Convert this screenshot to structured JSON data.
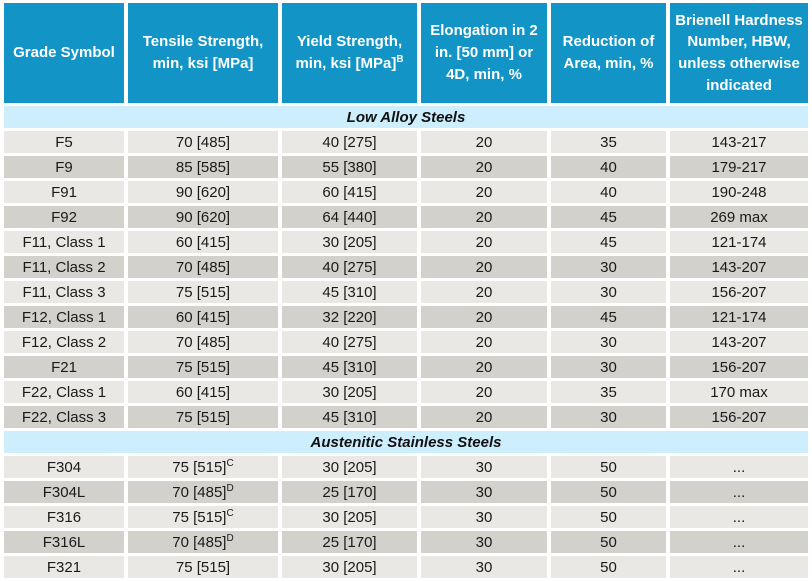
{
  "colors": {
    "header_bg": "#1295c6",
    "header_text": "#ffffff",
    "section_bg": "#cdeefc",
    "section_text": "#111111",
    "row_light": "#e9e8e4",
    "row_dark": "#d3d1cc",
    "cell_text": "#1a1a1a",
    "gap": "#ffffff"
  },
  "chart_data": {
    "type": "table",
    "columns": [
      {
        "label": "Grade Symbol",
        "sup": ""
      },
      {
        "label": "Tensile Strength, min, ksi [MPa]",
        "sup": ""
      },
      {
        "label": "Yield Strength, min, ksi [MPa]",
        "sup": "B"
      },
      {
        "label": "Elongation in 2 in. [50 mm] or 4D, min, %",
        "sup": ""
      },
      {
        "label": "Reduction of Area, min, %",
        "sup": ""
      },
      {
        "label": "Brienell Hardness Number, HBW, unless otherwise indicated",
        "sup": ""
      }
    ],
    "sections": [
      {
        "title": "Low Alloy Steels",
        "rows": [
          {
            "grade": "F5",
            "tensile": "70 [485]",
            "tensile_sup": "",
            "yield": "40 [275]",
            "elongation": "20",
            "reduction": "35",
            "hardness": "143-217"
          },
          {
            "grade": "F9",
            "tensile": "85 [585]",
            "tensile_sup": "",
            "yield": "55 [380]",
            "elongation": "20",
            "reduction": "40",
            "hardness": "179-217"
          },
          {
            "grade": "F91",
            "tensile": "90 [620]",
            "tensile_sup": "",
            "yield": "60 [415]",
            "elongation": "20",
            "reduction": "40",
            "hardness": "190-248"
          },
          {
            "grade": "F92",
            "tensile": "90 [620]",
            "tensile_sup": "",
            "yield": "64 [440]",
            "elongation": "20",
            "reduction": "45",
            "hardness": "269 max"
          },
          {
            "grade": "F11, Class 1",
            "tensile": "60 [415]",
            "tensile_sup": "",
            "yield": "30 [205]",
            "elongation": "20",
            "reduction": "45",
            "hardness": "121-174"
          },
          {
            "grade": "F11, Class 2",
            "tensile": "70 [485]",
            "tensile_sup": "",
            "yield": "40 [275]",
            "elongation": "20",
            "reduction": "30",
            "hardness": "143-207"
          },
          {
            "grade": "F11, Class 3",
            "tensile": "75 [515]",
            "tensile_sup": "",
            "yield": "45 [310]",
            "elongation": "20",
            "reduction": "30",
            "hardness": "156-207"
          },
          {
            "grade": "F12, Class 1",
            "tensile": "60 [415]",
            "tensile_sup": "",
            "yield": "32 [220]",
            "elongation": "20",
            "reduction": "45",
            "hardness": "121-174"
          },
          {
            "grade": "F12, Class 2",
            "tensile": "70 [485]",
            "tensile_sup": "",
            "yield": "40 [275]",
            "elongation": "20",
            "reduction": "30",
            "hardness": "143-207"
          },
          {
            "grade": "F21",
            "tensile": "75 [515]",
            "tensile_sup": "",
            "yield": "45 [310]",
            "elongation": "20",
            "reduction": "30",
            "hardness": "156-207"
          },
          {
            "grade": "F22, Class 1",
            "tensile": "60 [415]",
            "tensile_sup": "",
            "yield": "30 [205]",
            "elongation": "20",
            "reduction": "35",
            "hardness": "170 max"
          },
          {
            "grade": "F22, Class 3",
            "tensile": "75 [515]",
            "tensile_sup": "",
            "yield": "45 [310]",
            "elongation": "20",
            "reduction": "30",
            "hardness": "156-207"
          }
        ]
      },
      {
        "title": "Austenitic Stainless Steels",
        "rows": [
          {
            "grade": "F304",
            "tensile": "75 [515]",
            "tensile_sup": "C",
            "yield": "30 [205]",
            "elongation": "30",
            "reduction": "50",
            "hardness": "..."
          },
          {
            "grade": "F304L",
            "tensile": "70 [485]",
            "tensile_sup": "D",
            "yield": "25 [170]",
            "elongation": "30",
            "reduction": "50",
            "hardness": "..."
          },
          {
            "grade": "F316",
            "tensile": "75 [515]",
            "tensile_sup": "C",
            "yield": "30 [205]",
            "elongation": "30",
            "reduction": "50",
            "hardness": "..."
          },
          {
            "grade": "F316L",
            "tensile": "70 [485]",
            "tensile_sup": "D",
            "yield": "25 [170]",
            "elongation": "30",
            "reduction": "50",
            "hardness": "..."
          },
          {
            "grade": "F321",
            "tensile": "75 [515]",
            "tensile_sup": "",
            "yield": "30 [205]",
            "elongation": "30",
            "reduction": "50",
            "hardness": "..."
          }
        ]
      }
    ]
  }
}
